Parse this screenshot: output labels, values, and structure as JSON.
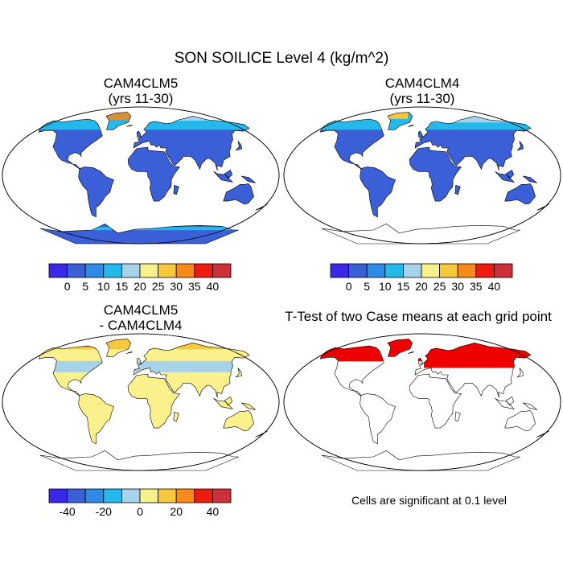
{
  "main_title": "SON SOILICE Level 4 (kg/m^2)",
  "panels": [
    {
      "id": "p1",
      "title_line1": "CAM4CLM5",
      "title_line2": "(yrs 11-30)",
      "fill": "#3a5fd6",
      "cold_band": "high-values",
      "antarctic_fringe": true
    },
    {
      "id": "p2",
      "title_line1": "CAM4CLM4",
      "title_line2": "(yrs 11-30)",
      "fill": "#3a5fd6",
      "cold_band": "low-values",
      "antarctic_fringe": false
    },
    {
      "id": "p3",
      "title_line1": "CAM4CLM5",
      "title_line2": "- CAM4CLM4",
      "fill": "#faf08c",
      "cold_band": "difference",
      "antarctic_fringe": false
    },
    {
      "id": "p4",
      "title_line1": "T-Test of two Case means at each grid point",
      "title_line2": "",
      "fill": "none",
      "cold_band": "significance",
      "antarctic_fringe": false
    }
  ],
  "colorbar_abs": {
    "colors": [
      "#3b28e6",
      "#3a5fd6",
      "#2d8ae6",
      "#25b8ea",
      "#a7d3ea",
      "#f8f08a",
      "#f8c83c",
      "#f88a1a",
      "#ee1c10",
      "#cc3038"
    ],
    "labels": [
      "0",
      "5",
      "10",
      "15",
      "20",
      "25",
      "30",
      "35",
      "40"
    ]
  },
  "colorbar_diff": {
    "colors": [
      "#3b28e6",
      "#3a5fd6",
      "#2d8ae6",
      "#25b8ea",
      "#a7d3ea",
      "#f8f08a",
      "#f8c83c",
      "#f88a1a",
      "#ee1c10",
      "#cc3038"
    ],
    "labels": [
      "-40",
      "-20",
      "0",
      "20",
      "40"
    ],
    "label_boundaries": [
      1,
      3,
      5,
      7,
      9
    ]
  },
  "significance_note": "Cells are significant at 0.1 level",
  "significance_color": "#ee0000",
  "outline_color": "#000000"
}
